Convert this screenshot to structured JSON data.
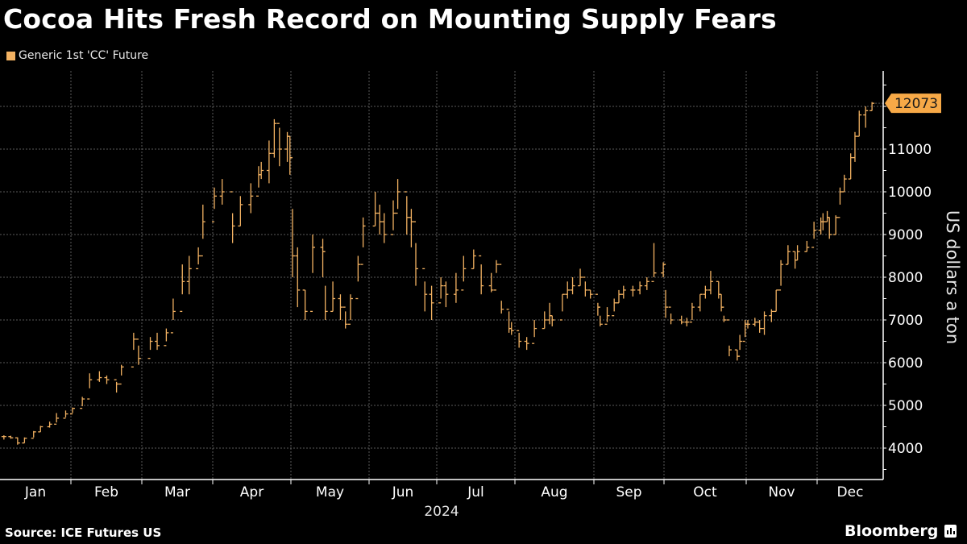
{
  "title": "Cocoa Hits Fresh Record on Mounting Supply Fears",
  "source": "Source: ICE Futures US",
  "brand": "Bloomberg",
  "colors": {
    "series": "#f3b262",
    "background": "#000000",
    "grid": "#5a5a5a",
    "label_bg": "#f7a947"
  },
  "chart_data": {
    "type": "ohlc-bar",
    "title": "Cocoa Hits Fresh Record on Mounting Supply Fears",
    "legend": {
      "entries": [
        "Generic 1st 'CC' Future"
      ],
      "placement": "top-left"
    },
    "xlabel": "2024",
    "ylabel": "US dollars a ton",
    "x_tick_labels": [
      "Jan",
      "Feb",
      "Mar",
      "Apr",
      "May",
      "Jun",
      "Jul",
      "Aug",
      "Sep",
      "Oct",
      "Nov",
      "Dec"
    ],
    "y_tick_labels": [
      "4000",
      "5000",
      "6000",
      "7000",
      "8000",
      "9000",
      "10000",
      "11000"
    ],
    "ylim": [
      3500,
      12900
    ],
    "grid": true,
    "y_axis_side": "right",
    "last_value_label": "12073",
    "series": [
      {
        "name": "Generic 1st 'CC' Future",
        "fields": [
          "date",
          "high",
          "low",
          "close"
        ],
        "values": [
          [
            "2024-01-02",
            4300,
            4200,
            4270
          ],
          [
            "2024-01-05",
            4290,
            4220,
            4240
          ],
          [
            "2024-01-08",
            4250,
            4080,
            4120
          ],
          [
            "2024-01-11",
            4250,
            4120,
            4230
          ],
          [
            "2024-01-15",
            4400,
            4250,
            4380
          ],
          [
            "2024-01-18",
            4520,
            4380,
            4500
          ],
          [
            "2024-01-22",
            4620,
            4480,
            4560
          ],
          [
            "2024-01-25",
            4820,
            4600,
            4700
          ],
          [
            "2024-01-29",
            4880,
            4720,
            4800
          ],
          [
            "2024-02-01",
            4950,
            4820,
            4930
          ],
          [
            "2024-02-05",
            5200,
            4980,
            5150
          ],
          [
            "2024-02-08",
            5750,
            5400,
            5600
          ],
          [
            "2024-02-12",
            5800,
            5550,
            5650
          ],
          [
            "2024-02-15",
            5700,
            5500,
            5600
          ],
          [
            "2024-02-19",
            5550,
            5300,
            5500
          ],
          [
            "2024-02-21",
            5950,
            5700,
            5900
          ],
          [
            "2024-02-26",
            6700,
            6300,
            6550
          ],
          [
            "2024-02-28",
            6400,
            5950,
            6100
          ],
          [
            "2024-03-04",
            6600,
            6300,
            6500
          ],
          [
            "2024-03-07",
            6700,
            6300,
            6400
          ],
          [
            "2024-03-11",
            6800,
            6500,
            6700
          ],
          [
            "2024-03-14",
            7500,
            7000,
            7200
          ],
          [
            "2024-03-18",
            8300,
            7600,
            7900
          ],
          [
            "2024-03-21",
            8500,
            7600,
            8200
          ],
          [
            "2024-03-25",
            8700,
            8300,
            8500
          ],
          [
            "2024-03-27",
            9700,
            8900,
            9300
          ],
          [
            "2024-04-01",
            10100,
            9600,
            9900
          ],
          [
            "2024-04-04",
            10300,
            9700,
            10000
          ],
          [
            "2024-04-08",
            9500,
            8800,
            9200
          ],
          [
            "2024-04-11",
            9900,
            9200,
            9700
          ],
          [
            "2024-04-15",
            10200,
            9500,
            9900
          ],
          [
            "2024-04-18",
            10600,
            10100,
            10400
          ],
          [
            "2024-04-19",
            10700,
            10300,
            10500
          ],
          [
            "2024-04-22",
            11200,
            10200,
            10900
          ],
          [
            "2024-04-24",
            11700,
            10800,
            11600
          ],
          [
            "2024-04-26",
            11500,
            10600,
            11000
          ],
          [
            "2024-04-29",
            11400,
            10700,
            11300
          ],
          [
            "2024-04-30",
            11300,
            10400,
            10800
          ],
          [
            "2024-05-01",
            9600,
            8000,
            8500
          ],
          [
            "2024-05-03",
            8700,
            7300,
            7700
          ],
          [
            "2024-05-06",
            7700,
            7000,
            7200
          ],
          [
            "2024-05-09",
            9000,
            8100,
            8700
          ],
          [
            "2024-05-13",
            8900,
            8000,
            8600
          ],
          [
            "2024-05-14",
            7800,
            7000,
            7200
          ],
          [
            "2024-05-17",
            7900,
            7200,
            7500
          ],
          [
            "2024-05-20",
            7600,
            7000,
            7300
          ],
          [
            "2024-05-22",
            7200,
            6800,
            6900
          ],
          [
            "2024-05-24",
            7600,
            7000,
            7500
          ],
          [
            "2024-05-27",
            8500,
            7900,
            8300
          ],
          [
            "2024-05-29",
            9400,
            8700,
            9200
          ],
          [
            "2024-06-03",
            10000,
            9200,
            9500
          ],
          [
            "2024-06-05",
            9700,
            9000,
            9300
          ],
          [
            "2024-06-07",
            9500,
            8800,
            9000
          ],
          [
            "2024-06-11",
            9800,
            9100,
            9500
          ],
          [
            "2024-06-13",
            10300,
            9600,
            10000
          ],
          [
            "2024-06-17",
            9900,
            9000,
            9400
          ],
          [
            "2024-06-19",
            9600,
            8700,
            9300
          ],
          [
            "2024-06-21",
            8800,
            7800,
            8200
          ],
          [
            "2024-06-25",
            7900,
            7200,
            7600
          ],
          [
            "2024-06-28",
            7800,
            7000,
            7400
          ],
          [
            "2024-07-02",
            8000,
            7500,
            7800
          ],
          [
            "2024-07-04",
            7900,
            7300,
            7600
          ],
          [
            "2024-07-08",
            8100,
            7400,
            7700
          ],
          [
            "2024-07-11",
            8500,
            7900,
            8200
          ],
          [
            "2024-07-15",
            8650,
            8200,
            8500
          ],
          [
            "2024-07-18",
            8300,
            7600,
            7800
          ],
          [
            "2024-07-22",
            8100,
            7650,
            7700
          ],
          [
            "2024-07-24",
            8400,
            8100,
            8300
          ],
          [
            "2024-07-26",
            7450,
            7150,
            7250
          ],
          [
            "2024-07-29",
            7200,
            6700,
            6800
          ],
          [
            "2024-07-30",
            6950,
            6650,
            6750
          ],
          [
            "2024-08-02",
            6700,
            6350,
            6500
          ],
          [
            "2024-08-05",
            6600,
            6300,
            6450
          ],
          [
            "2024-08-08",
            7000,
            6600,
            6800
          ],
          [
            "2024-08-12",
            7200,
            6800,
            7000
          ],
          [
            "2024-08-14",
            7400,
            6900,
            7100
          ],
          [
            "2024-08-15",
            7100,
            6850,
            7000
          ],
          [
            "2024-08-19",
            7600,
            7200,
            7600
          ],
          [
            "2024-08-21",
            7900,
            7500,
            7700
          ],
          [
            "2024-08-23",
            8000,
            7600,
            7800
          ],
          [
            "2024-08-26",
            8200,
            7800,
            8000
          ],
          [
            "2024-08-28",
            7900,
            7550,
            7700
          ],
          [
            "2024-08-30",
            7700,
            7500,
            7600
          ],
          [
            "2024-09-02",
            7400,
            7100,
            7300
          ],
          [
            "2024-09-03",
            7100,
            6850,
            6900
          ],
          [
            "2024-09-06",
            7300,
            6950,
            7100
          ],
          [
            "2024-09-09",
            7500,
            7200,
            7400
          ],
          [
            "2024-09-11",
            7700,
            7400,
            7600
          ],
          [
            "2024-09-13",
            7800,
            7500,
            7700
          ],
          [
            "2024-09-17",
            7800,
            7550,
            7700
          ],
          [
            "2024-09-20",
            7900,
            7600,
            7800
          ],
          [
            "2024-09-23",
            8000,
            7700,
            7900
          ],
          [
            "2024-09-26",
            8800,
            8000,
            8100
          ],
          [
            "2024-09-30",
            8350,
            8000,
            8300
          ],
          [
            "2024-10-01",
            7700,
            7050,
            7300
          ],
          [
            "2024-10-03",
            7150,
            6900,
            7000
          ],
          [
            "2024-10-07",
            7100,
            6900,
            6950
          ],
          [
            "2024-10-09",
            7050,
            6850,
            6950
          ],
          [
            "2024-10-11",
            7400,
            7000,
            7300
          ],
          [
            "2024-10-14",
            7600,
            7200,
            7600
          ],
          [
            "2024-10-16",
            7800,
            7500,
            7700
          ],
          [
            "2024-10-18",
            8150,
            7600,
            7900
          ],
          [
            "2024-10-21",
            7900,
            7500,
            7600
          ],
          [
            "2024-10-22",
            7600,
            7200,
            7300
          ],
          [
            "2024-10-23",
            7100,
            6950,
            7000
          ],
          [
            "2024-10-25",
            6400,
            6150,
            6300
          ],
          [
            "2024-10-28",
            6300,
            6050,
            6150
          ],
          [
            "2024-10-29",
            6650,
            6300,
            6500
          ],
          [
            "2024-10-31",
            7000,
            6600,
            6900
          ],
          [
            "2024-11-01",
            7000,
            6800,
            6900
          ],
          [
            "2024-11-04",
            7050,
            6850,
            6950
          ],
          [
            "2024-11-06",
            7000,
            6700,
            6800
          ],
          [
            "2024-11-08",
            7200,
            6650,
            7100
          ],
          [
            "2024-11-11",
            7250,
            6950,
            7200
          ],
          [
            "2024-11-13",
            7700,
            7200,
            7700
          ],
          [
            "2024-11-15",
            8400,
            7800,
            8300
          ],
          [
            "2024-11-18",
            8750,
            8300,
            8600
          ],
          [
            "2024-11-21",
            8600,
            8200,
            8400
          ],
          [
            "2024-11-22",
            8750,
            8400,
            8600
          ],
          [
            "2024-11-26",
            8850,
            8600,
            8700
          ],
          [
            "2024-11-29",
            9300,
            8900,
            9100
          ],
          [
            "2024-12-02",
            9400,
            9000,
            9300
          ],
          [
            "2024-12-03",
            9500,
            9100,
            9300
          ],
          [
            "2024-12-05",
            9550,
            9300,
            9400
          ],
          [
            "2024-12-06",
            9400,
            8900,
            9000
          ],
          [
            "2024-12-09",
            9450,
            9000,
            9400
          ],
          [
            "2024-12-11",
            10100,
            9700,
            10000
          ],
          [
            "2024-12-13",
            10400,
            10000,
            10300
          ],
          [
            "2024-12-16",
            10900,
            10300,
            10800
          ],
          [
            "2024-12-18",
            11400,
            10700,
            11300
          ],
          [
            "2024-12-20",
            11900,
            11300,
            11800
          ],
          [
            "2024-12-23",
            12000,
            11500,
            11900
          ],
          [
            "2024-12-26",
            12100,
            11900,
            12073
          ]
        ]
      }
    ]
  }
}
